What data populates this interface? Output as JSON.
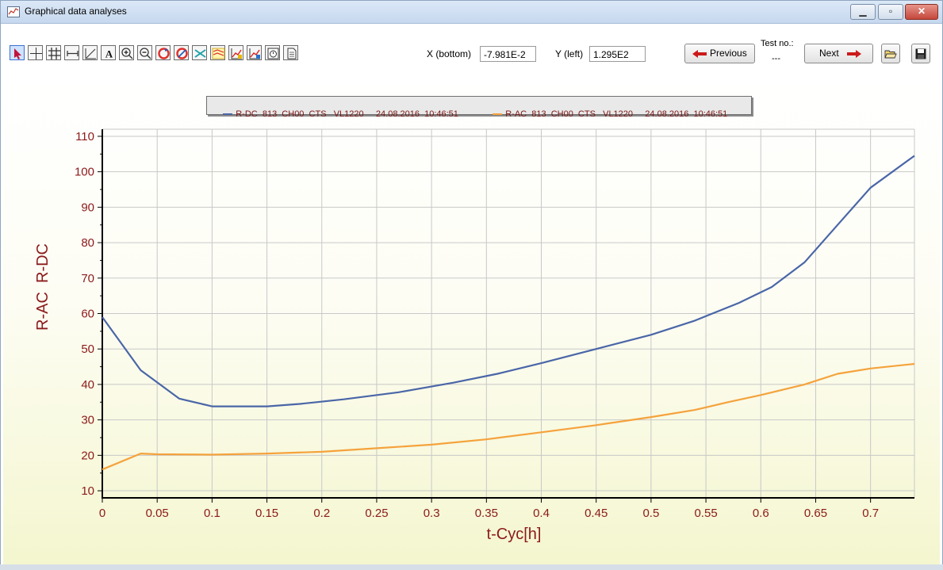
{
  "window": {
    "title": "Graphical data analyses"
  },
  "toolbar": {
    "tools": [
      "select-arrow-icon",
      "crosshair-icon",
      "grid-icon",
      "range-icon",
      "axis-scale-icon",
      "text-icon",
      "zoom-in-icon",
      "zoom-out-icon",
      "refresh-icon",
      "reset-icon",
      "curve-icon",
      "stacked-chart-icon",
      "chart-edit-icon",
      "chart-edit2-icon",
      "timer-icon",
      "document-icon"
    ],
    "x_label": "X (bottom)",
    "x_value": "-7.981E-2",
    "y_label": "Y (left)",
    "y_value": "1.295E2",
    "previous_label": "Previous",
    "test_no_label": "Test no.:",
    "test_no_value": "---",
    "next_label": "Next",
    "open_icon": "folder-open-icon",
    "save_icon": "save-icon"
  },
  "colors": {
    "series_dc": "#4a66a8",
    "series_ac": "#f5a23c",
    "axis_text": "#8b1a1a",
    "grid": "#c8c8c8"
  },
  "chart_data": {
    "type": "line",
    "title": "",
    "xlabel": "t-Cyc[h]",
    "ylabel": "R-AC  R-DC",
    "xlim": [
      0,
      0.74
    ],
    "ylim": [
      8,
      112
    ],
    "x_ticks": [
      "0",
      "0.05",
      "0.1",
      "0.15",
      "0.2",
      "0.25",
      "0.3",
      "0.35",
      "0.4",
      "0.45",
      "0.5",
      "0.55",
      "0.6",
      "0.65",
      "0.7"
    ],
    "y_ticks": [
      "10",
      "20",
      "30",
      "40",
      "50",
      "60",
      "70",
      "80",
      "90",
      "100",
      "110"
    ],
    "legend": "top-center",
    "grid": true,
    "series": [
      {
        "name": "R-DC  813  CH00  CTS   VL1220     24.08.2016  10:46:51",
        "x": [
          0,
          0.035,
          0.07,
          0.1,
          0.12,
          0.15,
          0.18,
          0.22,
          0.27,
          0.32,
          0.36,
          0.4,
          0.45,
          0.5,
          0.54,
          0.58,
          0.61,
          0.64,
          0.67,
          0.7,
          0.74
        ],
        "y": [
          59,
          44,
          36,
          33.8,
          33.8,
          33.8,
          34.5,
          35.8,
          37.8,
          40.5,
          43,
          46,
          50,
          54,
          58,
          63,
          67.5,
          74.5,
          85,
          95.5,
          104.5
        ]
      },
      {
        "name": "R-AC  813  CH00  CTS   VL1220     24.08.2016  10:46:51",
        "x": [
          0,
          0.035,
          0.05,
          0.1,
          0.15,
          0.2,
          0.25,
          0.3,
          0.35,
          0.4,
          0.45,
          0.5,
          0.54,
          0.57,
          0.6,
          0.64,
          0.67,
          0.7,
          0.74
        ],
        "y": [
          16,
          20.5,
          20.3,
          20.2,
          20.5,
          21,
          22,
          23,
          24.5,
          26.5,
          28.5,
          30.8,
          32.8,
          35,
          37,
          40,
          43,
          44.5,
          45.8
        ]
      }
    ]
  }
}
